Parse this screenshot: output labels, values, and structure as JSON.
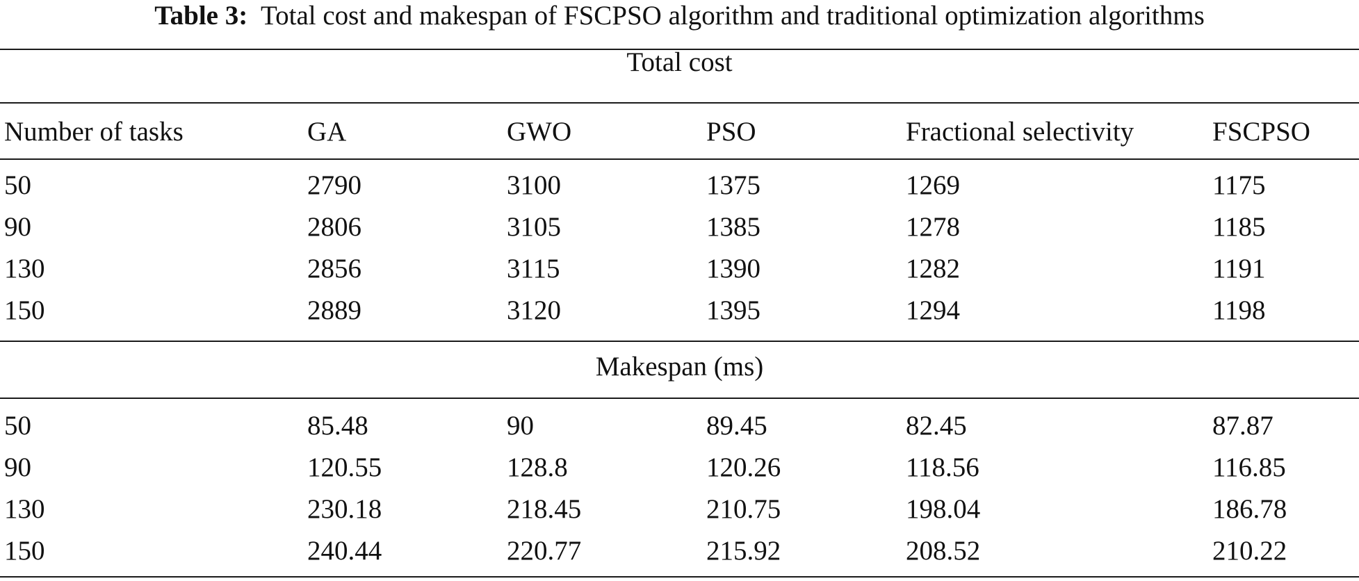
{
  "caption": {
    "label": "Table 3:",
    "text": "Total cost and makespan of FSCPSO algorithm and traditional optimization algorithms"
  },
  "columns": [
    "Number of tasks",
    "GA",
    "GWO",
    "PSO",
    "Fractional selectivity",
    "FSCPSO"
  ],
  "sections": [
    {
      "title": "Total cost",
      "rows": [
        [
          "50",
          "2790",
          "3100",
          "1375",
          "1269",
          "1175"
        ],
        [
          "90",
          "2806",
          "3105",
          "1385",
          "1278",
          "1185"
        ],
        [
          "130",
          "2856",
          "3115",
          "1390",
          "1282",
          "1191"
        ],
        [
          "150",
          "2889",
          "3120",
          "1395",
          "1294",
          "1198"
        ]
      ]
    },
    {
      "title": "Makespan (ms)",
      "rows": [
        [
          "50",
          "85.48",
          "90",
          "89.45",
          "82.45",
          "87.87"
        ],
        [
          "90",
          "120.55",
          "128.8",
          "120.26",
          "118.56",
          "116.85"
        ],
        [
          "130",
          "230.18",
          "218.45",
          "210.75",
          "198.04",
          "186.78"
        ],
        [
          "150",
          "240.44",
          "220.77",
          "215.92",
          "208.52",
          "210.22"
        ]
      ]
    }
  ]
}
